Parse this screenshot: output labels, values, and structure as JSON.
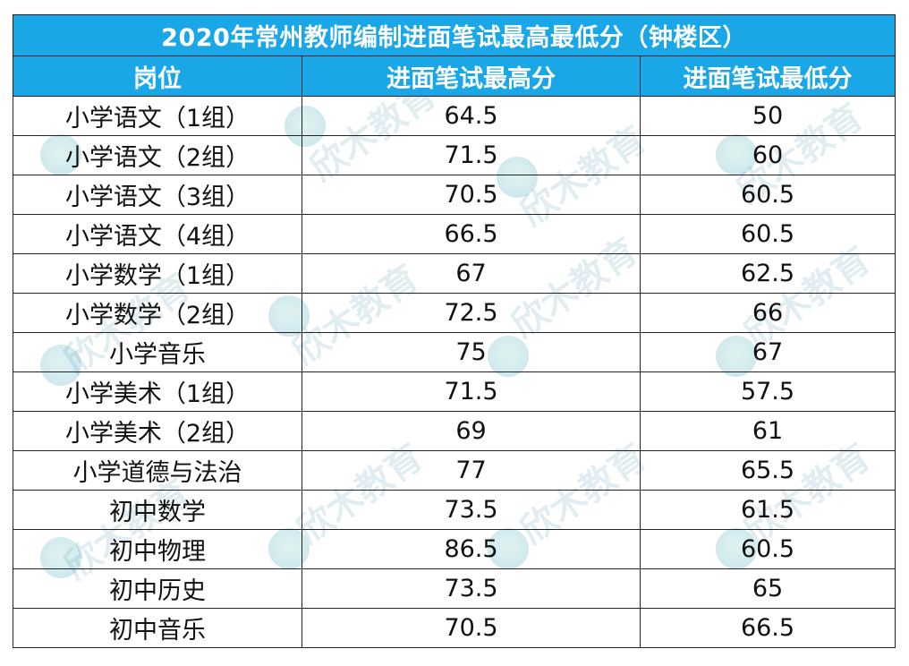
{
  "title": "2020年常州教师编制进面笔试最高最低分（钟楼区）",
  "columns": [
    "岗位",
    "进面笔试最高分",
    "进面笔试最低分"
  ],
  "rows": [
    {
      "position": "小学语文（1组）",
      "max": "64.5",
      "min": "50"
    },
    {
      "position": "小学语文（2组）",
      "max": "71.5",
      "min": "60"
    },
    {
      "position": "小学语文（3组）",
      "max": "70.5",
      "min": "60.5"
    },
    {
      "position": "小学语文（4组）",
      "max": "66.5",
      "min": "60.5"
    },
    {
      "position": "小学数学（1组）",
      "max": "67",
      "min": "62.5"
    },
    {
      "position": "小学数学（2组）",
      "max": "72.5",
      "min": "66"
    },
    {
      "position": "小学音乐",
      "max": "75",
      "min": "67"
    },
    {
      "position": "小学美术（1组）",
      "max": "71.5",
      "min": "57.5"
    },
    {
      "position": "小学美术（2组）",
      "max": "69",
      "min": "61"
    },
    {
      "position": "小学道德与法治",
      "max": "77",
      "min": "65.5"
    },
    {
      "position": "初中数学",
      "max": "73.5",
      "min": "61.5"
    },
    {
      "position": "初中物理",
      "max": "86.5",
      "min": "60.5"
    },
    {
      "position": "初中历史",
      "max": "73.5",
      "min": "65"
    },
    {
      "position": "初中音乐",
      "max": "70.5",
      "min": "66.5"
    }
  ],
  "watermark_text": "欣木教育",
  "colors": {
    "header_bg": "#1aa7e8",
    "header_text": "#ffffff",
    "border": "#222222"
  }
}
